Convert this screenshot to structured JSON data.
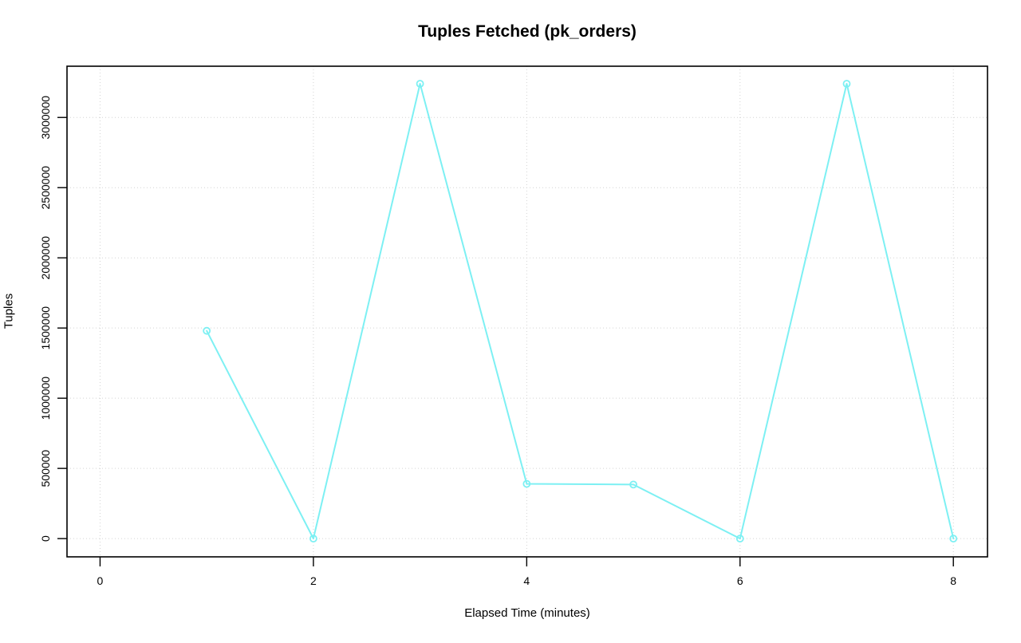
{
  "chart_data": {
    "type": "line",
    "title": "Tuples Fetched (pk_orders)",
    "xlabel": "Elapsed Time (minutes)",
    "ylabel": "Tuples",
    "x": [
      1,
      2,
      3,
      4,
      5,
      6,
      7,
      8
    ],
    "y": [
      1480000,
      0,
      3240000,
      390000,
      385000,
      0,
      3240000,
      0
    ],
    "x_ticks": [
      0,
      2,
      4,
      6,
      8
    ],
    "y_ticks": [
      0,
      500000,
      1000000,
      1500000,
      2000000,
      2500000,
      3000000
    ],
    "xlim": [
      -0.31,
      8.32
    ],
    "ylim": [
      -130000,
      3365000
    ],
    "grid": true,
    "legend": "none",
    "marker": "open-circle",
    "line_color": "#7df0f3",
    "grid_color": "#d3d3d3",
    "axis_color": "#000000",
    "background": "#ffffff"
  }
}
